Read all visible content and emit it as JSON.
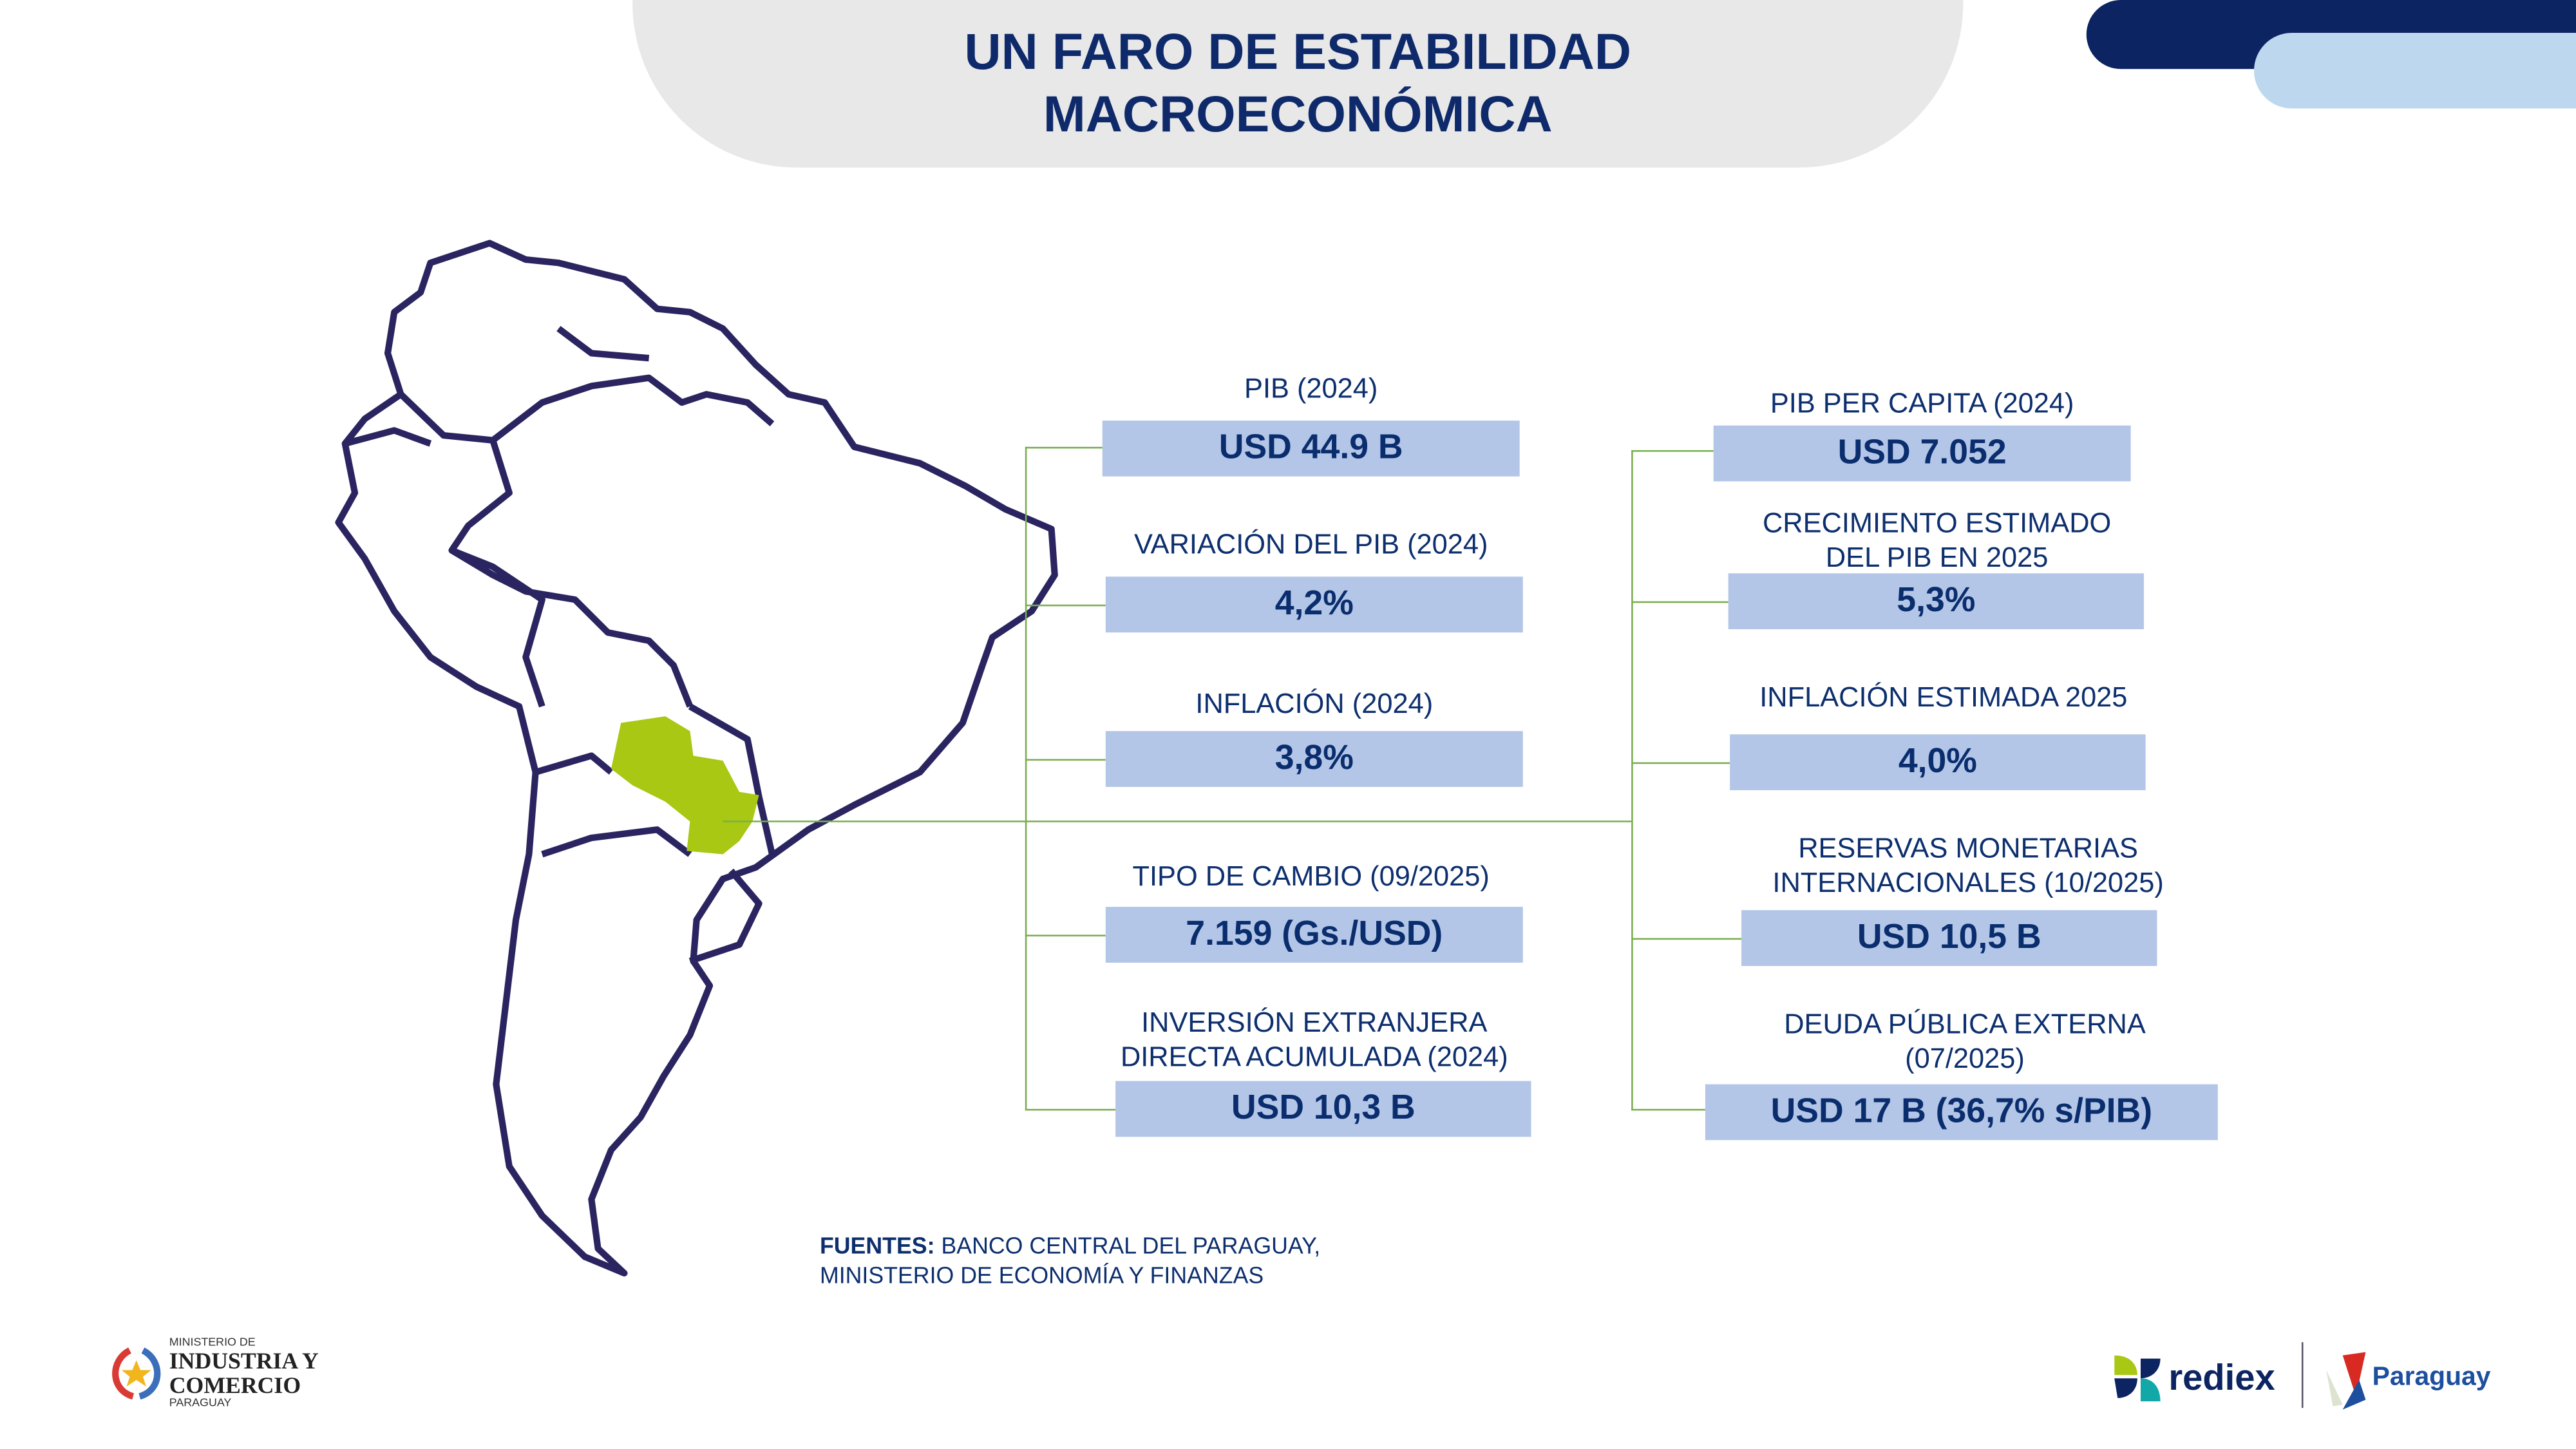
{
  "title": {
    "line1": "UN FARO DE ESTABILIDAD",
    "line2": "MACROECONÓMICA"
  },
  "left_indicators": [
    {
      "label": [
        "PIB (2024)"
      ],
      "value": "USD 44.9 B"
    },
    {
      "label": [
        "VARIACIÓN DEL PIB (2024)"
      ],
      "value": "4,2%"
    },
    {
      "label": [
        "INFLACIÓN (2024)"
      ],
      "value": "3,8%"
    },
    {
      "label": [
        "TIPO DE CAMBIO (09/2025)"
      ],
      "value": "7.159 (Gs./USD)"
    },
    {
      "label": [
        "INVERSIÓN EXTRANJERA",
        "DIRECTA ACUMULADA (2024)"
      ],
      "value": "USD 10,3 B"
    }
  ],
  "right_indicators": [
    {
      "label": [
        "PIB PER CAPITA (2024)"
      ],
      "value": "USD 7.052"
    },
    {
      "label": [
        "CRECIMIENTO ESTIMADO",
        "DEL PIB EN 2025"
      ],
      "value": "5,3%"
    },
    {
      "label": [
        "INFLACIÓN ESTIMADA 2025"
      ],
      "value": "4,0%"
    },
    {
      "label": [
        "RESERVAS MONETARIAS",
        "INTERNACIONALES (10/2025)"
      ],
      "value": "USD 10,5 B"
    },
    {
      "label": [
        "DEUDA PÚBLICA EXTERNA",
        "(07/2025)"
      ],
      "value": "USD 17 B (36,7% s/PIB)"
    }
  ],
  "sources": {
    "prefix": "FUENTES:",
    "line1": "BANCO CENTRAL DEL PARAGUAY,",
    "line2": "MINISTERIO DE ECONOMÍA Y FINANZAS"
  },
  "logos": {
    "ministry": {
      "line1": "MINISTERIO DE",
      "line2": "INDUSTRIA Y",
      "line3": "COMERCIO",
      "line4": "PARAGUAY"
    },
    "rediex": "rediex",
    "paraguay": "Paraguay"
  },
  "colors": {
    "navy": "#0d2f6e",
    "box": "#b4c6e7",
    "connector": "#7aae4f",
    "paraguay": "#a8c813",
    "map_outline": "#2a2560"
  }
}
